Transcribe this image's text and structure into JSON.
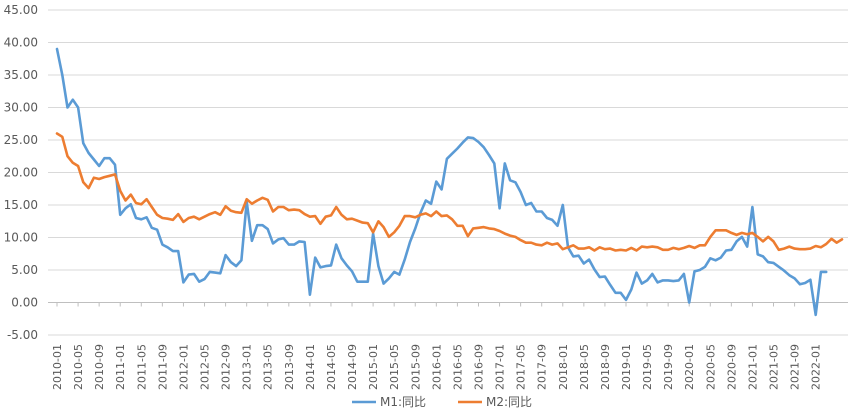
{
  "chart_data": {
    "type": "line",
    "title": "",
    "xlabel": "",
    "ylabel": "",
    "ylim": [
      -5,
      45
    ],
    "y_ticks": [
      "-5.00",
      "0.00",
      "5.00",
      "10.00",
      "15.00",
      "20.00",
      "25.00",
      "30.00",
      "35.00",
      "40.00",
      "45.00"
    ],
    "x_tick_labels": [
      "2010-01",
      "2010-05",
      "2010-09",
      "2011-01",
      "2011-05",
      "2011-09",
      "2012-01",
      "2012-05",
      "2012-09",
      "2013-01",
      "2013-05",
      "2013-09",
      "2014-01",
      "2014-05",
      "2014-09",
      "2015-01",
      "2015-05",
      "2015-09",
      "2016-01",
      "2016-05",
      "2016-09",
      "2017-01",
      "2017-05",
      "2017-09",
      "2018-01",
      "2018-05",
      "2018-09",
      "2019-01",
      "2019-05",
      "2019-09",
      "2020-01",
      "2020-05",
      "2020-09",
      "2021-01",
      "2021-05",
      "2021-09",
      "2022-01"
    ],
    "start_month": "2010-01",
    "grid": "horizontal",
    "legend_position": "bottom",
    "series": [
      {
        "name": "M1:同比",
        "color": "#5B9BD5",
        "values": [
          39,
          35,
          30,
          31.2,
          30,
          24.5,
          23,
          22,
          21,
          22.2,
          22.2,
          21.2,
          13.5,
          14.5,
          15.1,
          13,
          12.8,
          13.1,
          11.5,
          11.2,
          8.9,
          8.5,
          7.9,
          7.9,
          3.1,
          4.3,
          4.4,
          3.2,
          3.6,
          4.7,
          4.6,
          4.5,
          7.3,
          6.2,
          5.6,
          6.5,
          15.5,
          9.5,
          11.9,
          11.9,
          11.3,
          9.1,
          9.7,
          9.9,
          8.9,
          8.9,
          9.4,
          9.3,
          1.2,
          6.9,
          5.4,
          5.6,
          5.7,
          8.9,
          6.8,
          5.7,
          4.8,
          3.2,
          3.2,
          3.2,
          10.6,
          5.6,
          2.9,
          3.7,
          4.7,
          4.3,
          6.6,
          9.3,
          11.4,
          13.8,
          15.7,
          15.2,
          18.6,
          17.4,
          22.1,
          22.9,
          23.7,
          24.6,
          25.4,
          25.3,
          24.7,
          23.9,
          22.7,
          21.4,
          14.5,
          21.4,
          18.8,
          18.5,
          17,
          15,
          15.3,
          14,
          14,
          13,
          12.7,
          11.8,
          15,
          8.5,
          7.1,
          7.2,
          6,
          6.6,
          5.1,
          3.9,
          4,
          2.7,
          1.5,
          1.5,
          0.4,
          2,
          4.6,
          2.9,
          3.4,
          4.4,
          3.1,
          3.4,
          3.4,
          3.3,
          3.4,
          4.4,
          0,
          4.8,
          5,
          5.5,
          6.8,
          6.5,
          6.9,
          8,
          8.1,
          9.4,
          10.1,
          8.6,
          14.7,
          7.4,
          7.1,
          6.2,
          6.1,
          5.5,
          4.9,
          4.2,
          3.7,
          2.8,
          3,
          3.5,
          -1.9,
          4.7,
          4.7
        ]
      },
      {
        "name": "M2:同比",
        "color": "#ED7D31",
        "values": [
          26,
          25.5,
          22.5,
          21.5,
          21,
          18.5,
          17.6,
          19.2,
          19,
          19.3,
          19.5,
          19.7,
          17.2,
          15.7,
          16.6,
          15.3,
          15.1,
          15.9,
          14.7,
          13.5,
          13,
          12.9,
          12.7,
          13.6,
          12.4,
          13,
          13.2,
          12.8,
          13.2,
          13.6,
          13.9,
          13.5,
          14.8,
          14.1,
          13.9,
          13.8,
          15.9,
          15.2,
          15.7,
          16.1,
          15.8,
          14,
          14.7,
          14.7,
          14.2,
          14.3,
          14.2,
          13.6,
          13.2,
          13.3,
          12.1,
          13.2,
          13.4,
          14.7,
          13.5,
          12.8,
          12.9,
          12.6,
          12.3,
          12.2,
          10.8,
          12.5,
          11.6,
          10.1,
          10.8,
          11.8,
          13.3,
          13.3,
          13.1,
          13.5,
          13.7,
          13.3,
          14,
          13.3,
          13.4,
          12.8,
          11.8,
          11.8,
          10.2,
          11.4,
          11.5,
          11.6,
          11.4,
          11.3,
          11,
          10.6,
          10.3,
          10.1,
          9.6,
          9.2,
          9.2,
          8.9,
          8.8,
          9.2,
          8.9,
          9.1,
          8.2,
          8.5,
          8.8,
          8.3,
          8.3,
          8.5,
          8,
          8.5,
          8.2,
          8.3,
          8,
          8.1,
          8,
          8.4,
          8,
          8.6,
          8.5,
          8.6,
          8.5,
          8.1,
          8.1,
          8.4,
          8.2,
          8.4,
          8.7,
          8.4,
          8.8,
          8.8,
          10.1,
          11.1,
          11.1,
          11.1,
          10.7,
          10.4,
          10.7,
          10.5,
          10.7,
          10.1,
          9.4,
          10.1,
          9.4,
          8.1,
          8.3,
          8.6,
          8.3,
          8.2,
          8.2,
          8.3,
          8.7,
          8.5,
          9,
          9.8,
          9.2,
          9.7
        ]
      }
    ]
  }
}
